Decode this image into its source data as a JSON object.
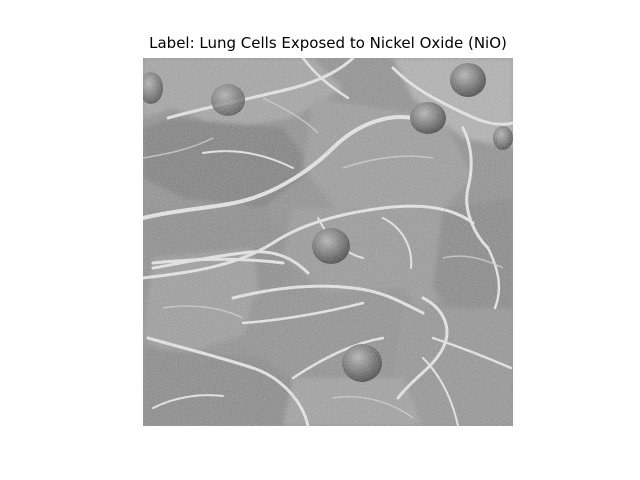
{
  "title": "Label: Lung Cells Exposed to Nickel Oxide (NiO)",
  "image": {
    "kind": "grayscale-micrograph",
    "palette": {
      "base": "#9a9a9a",
      "dark": "#5e5e5e",
      "mid": "#8c8c8c",
      "light": "#cfcfcf",
      "highlight": "#f2f2f2"
    }
  }
}
